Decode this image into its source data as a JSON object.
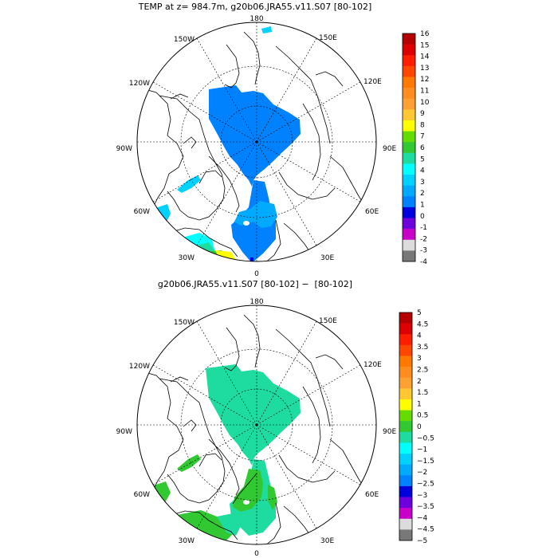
{
  "panels": [
    {
      "title": "TEMP at z= 984.7m, g20b06.JRA55.v11.S07 [80-102]",
      "lon_labels": {
        "n": "180",
        "nne": "150E",
        "ene": "120E",
        "e": "90E",
        "ese": "60E",
        "sse": "30E",
        "s": "0",
        "ssw": "30W",
        "wsw": "60W",
        "w": "90W",
        "wnw": "120W",
        "nnw": "150W"
      },
      "colorbar": {
        "labels": [
          "16",
          "15",
          "14",
          "13",
          "12",
          "11",
          "10",
          "9",
          "8",
          "7",
          "6",
          "5",
          "4",
          "3",
          "2",
          "1",
          "0",
          "-1",
          "-2",
          "-3",
          "-4"
        ],
        "colors": [
          "#b40000",
          "#dc0000",
          "#ff1e00",
          "#ff4600",
          "#ff7800",
          "#ff8c1e",
          "#ffa032",
          "#ffc832",
          "#ffff00",
          "#64dc00",
          "#32c832",
          "#1edca0",
          "#00ffff",
          "#00d2ff",
          "#00aaff",
          "#0082ff",
          "#0000dc",
          "#6e00dc",
          "#c800c8",
          "#dcdcdc",
          "#787878"
        ]
      }
    },
    {
      "title": "g20b06.JRA55.v11.S07 [80-102] −  [80-102]",
      "lon_labels": {
        "n": "180",
        "nne": "150E",
        "ene": "120E",
        "e": "90E",
        "ese": "60E",
        "sse": "30E",
        "s": "0",
        "ssw": "30W",
        "wsw": "60W",
        "w": "90W",
        "wnw": "120W",
        "nnw": "150W"
      },
      "colorbar": {
        "labels": [
          "5",
          "4.5",
          "4",
          "3.5",
          "3",
          "2.5",
          "2",
          "1.5",
          "1",
          "0.5",
          "0",
          "−0.5",
          "−1",
          "−1.5",
          "−2",
          "−2.5",
          "−3",
          "−3.5",
          "−4",
          "−4.5",
          "−5"
        ],
        "colors": [
          "#b40000",
          "#dc0000",
          "#ff1e00",
          "#ff4600",
          "#ff7800",
          "#ff8c1e",
          "#ffa032",
          "#ffc832",
          "#ffff00",
          "#64dc00",
          "#32c832",
          "#1edca0",
          "#00ffff",
          "#00d2ff",
          "#00aaff",
          "#0082ff",
          "#0000dc",
          "#6e00dc",
          "#c800c8",
          "#dcdcdc",
          "#787878"
        ]
      }
    }
  ]
}
